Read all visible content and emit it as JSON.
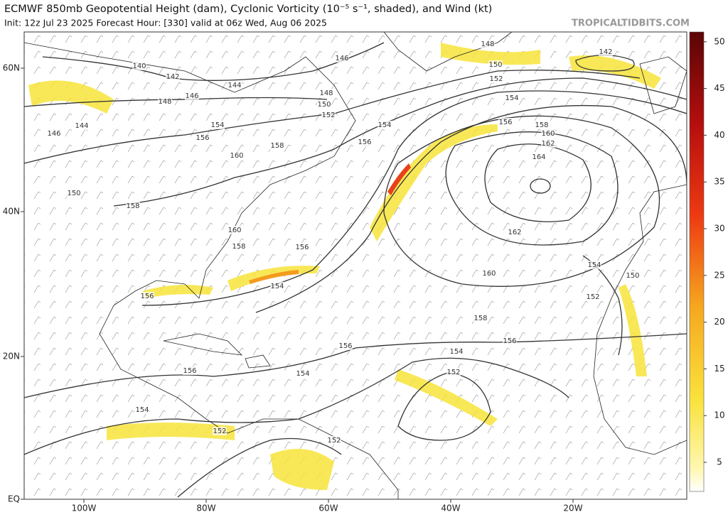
{
  "header": {
    "title": "ECMWF 850mb Geopotential Height (dam), Cyclonic Vorticity (10⁻⁵ s⁻¹, shaded), and Wind (kt)",
    "subtitle": "Init: 12z Jul 23 2025   Forecast Hour: [330]   valid at 06z Wed, Aug 06 2025",
    "site": "TROPICALTIDBITS.COM"
  },
  "map": {
    "lat_labels": [
      "60N",
      "40N",
      "20N",
      "EQ"
    ],
    "lon_labels": [
      "100W",
      "80W",
      "60W",
      "40W",
      "20W"
    ],
    "contour_labels": [
      "146",
      "148",
      "142",
      "150",
      "152",
      "154",
      "140",
      "142",
      "144",
      "146",
      "148",
      "148",
      "150",
      "152",
      "154",
      "156",
      "156",
      "158",
      "160",
      "162",
      "164",
      "146",
      "144",
      "154",
      "156",
      "158",
      "160",
      "150",
      "158",
      "160",
      "158",
      "156",
      "162",
      "154",
      "160",
      "154",
      "150",
      "152",
      "156",
      "158",
      "156",
      "156",
      "154",
      "152",
      "156",
      "154",
      "154",
      "152",
      "152"
    ]
  },
  "colorbar": {
    "labels": [
      "5",
      "10",
      "15",
      "20",
      "25",
      "30",
      "35",
      "40",
      "45",
      "50"
    ]
  }
}
